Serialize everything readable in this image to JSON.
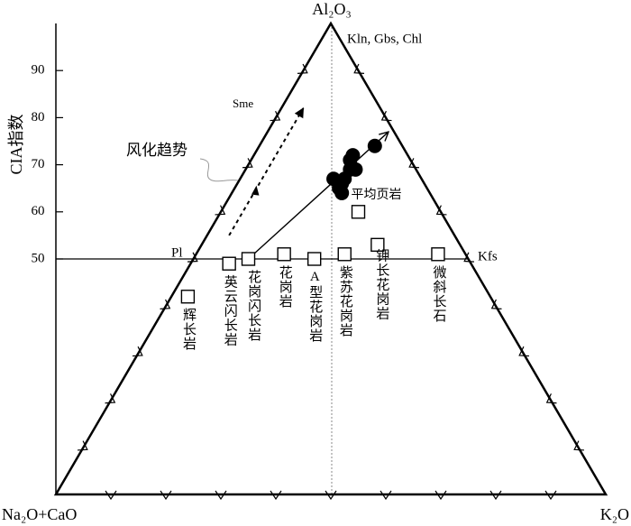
{
  "chart_data": {
    "type": "ternary",
    "ylabel": "CIA指数",
    "vertices": {
      "top": "Al₂O₃",
      "left": "Na₂O+CaO",
      "right": "K₂O"
    },
    "ylim": [
      0,
      100
    ],
    "yticks": [
      50,
      60,
      70,
      80,
      90
    ],
    "reference_line": 50,
    "mineral_labels": {
      "top": "Kln, Gbs, Chl",
      "sme": "Sme",
      "pl": "Pl",
      "kfs": "Kfs"
    },
    "annotation": "风化趋势",
    "rocks": {
      "labels": [
        "辉长岩",
        "英云闪长岩",
        "花岗闪长岩",
        "花岗岩",
        "A型花岗岩",
        "紫苏花岗岩",
        "钾长花岗岩",
        "微斜长石",
        "平均页岩"
      ],
      "cia": [
        42,
        49,
        50,
        51,
        50,
        51,
        53,
        51,
        60
      ],
      "k": [
        3,
        7,
        10,
        16,
        22,
        27,
        32,
        44,
        25
      ]
    },
    "samples": {
      "cia": [
        64,
        67,
        69,
        71,
        72,
        69,
        67,
        74,
        65,
        66
      ],
      "k": [
        20,
        17,
        19,
        18,
        18,
        20,
        19,
        21,
        19,
        19
      ]
    },
    "trend_end": {
      "cia": 77,
      "k": 22
    },
    "dashed_trend": {
      "cia": [
        55,
        82
      ],
      "k": [
        4,
        4
      ]
    }
  }
}
